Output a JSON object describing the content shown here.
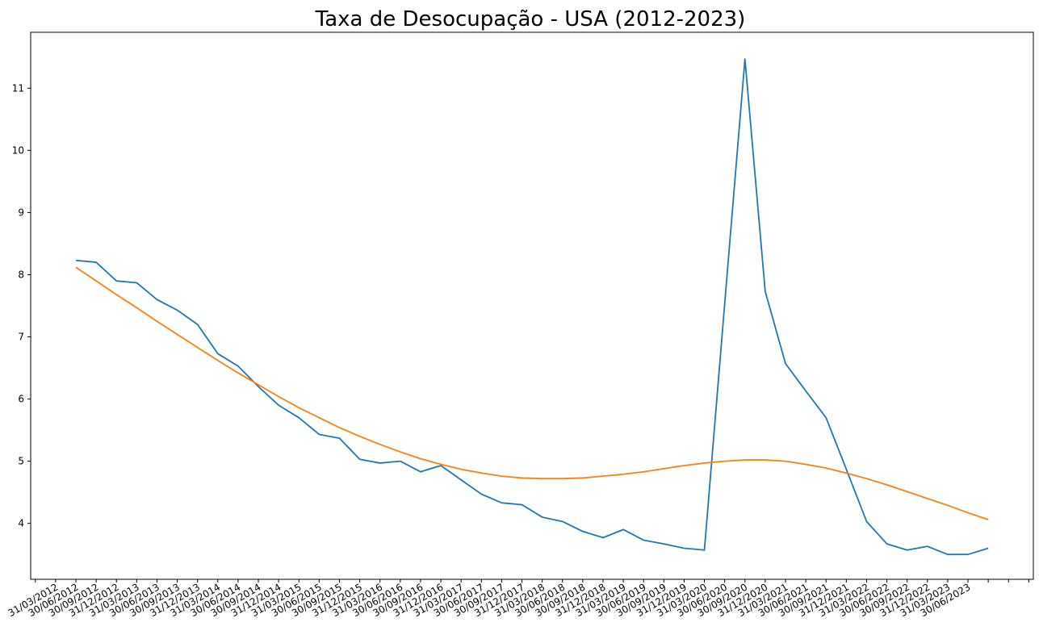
{
  "chart_data": {
    "type": "line",
    "title": "Taxa de Desocupação - USA (2012-2023)",
    "xlabel": "",
    "ylabel": "",
    "ylim": [
      3.1,
      11.9
    ],
    "grid": false,
    "x": [
      "31/03/2012",
      "30/06/2012",
      "30/09/2012",
      "31/12/2012",
      "31/03/2013",
      "30/06/2013",
      "30/09/2013",
      "31/12/2013",
      "31/03/2014",
      "30/06/2014",
      "30/09/2014",
      "31/12/2014",
      "31/03/2015",
      "30/06/2015",
      "30/09/2015",
      "31/12/2015",
      "31/03/2016",
      "30/06/2016",
      "30/09/2016",
      "31/12/2016",
      "31/03/2017",
      "30/06/2017",
      "30/09/2017",
      "31/12/2017",
      "31/03/2018",
      "30/06/2018",
      "30/09/2018",
      "31/12/2018",
      "31/03/2019",
      "30/06/2019",
      "30/09/2019",
      "31/12/2019",
      "31/03/2020",
      "30/06/2020",
      "30/09/2020",
      "31/12/2020",
      "31/03/2021",
      "30/06/2021",
      "30/09/2021",
      "31/12/2021",
      "31/03/2022",
      "30/06/2022",
      "30/09/2022",
      "31/12/2022",
      "31/03/2023",
      "30/06/2023"
    ],
    "series": [
      {
        "color": "#1f77b4",
        "values": [
          8.23,
          8.2,
          7.9,
          7.87,
          7.6,
          7.43,
          7.2,
          6.73,
          6.53,
          6.2,
          5.9,
          5.7,
          5.43,
          5.37,
          5.03,
          4.97,
          5.0,
          4.83,
          4.93,
          4.7,
          4.47,
          4.33,
          4.3,
          4.1,
          4.03,
          3.87,
          3.77,
          3.9,
          3.73,
          3.67,
          3.6,
          3.57,
          7.53,
          11.47,
          7.73,
          6.57,
          6.13,
          5.7,
          4.87,
          4.03,
          3.67,
          3.57,
          3.63,
          3.5,
          3.5,
          3.6
        ]
      },
      {
        "color": "#ff7f0e",
        "values": [
          8.12,
          7.9,
          7.68,
          7.47,
          7.25,
          7.04,
          6.83,
          6.62,
          6.42,
          6.23,
          6.04,
          5.86,
          5.7,
          5.54,
          5.4,
          5.27,
          5.15,
          5.04,
          4.95,
          4.87,
          4.81,
          4.76,
          4.73,
          4.72,
          4.72,
          4.73,
          4.76,
          4.79,
          4.83,
          4.88,
          4.93,
          4.97,
          5.0,
          5.02,
          5.02,
          5.0,
          4.95,
          4.89,
          4.81,
          4.72,
          4.62,
          4.51,
          4.4,
          4.29,
          4.17,
          4.06
        ]
      }
    ],
    "yticks": [
      4,
      5,
      6,
      7,
      8,
      9,
      10,
      11
    ]
  }
}
